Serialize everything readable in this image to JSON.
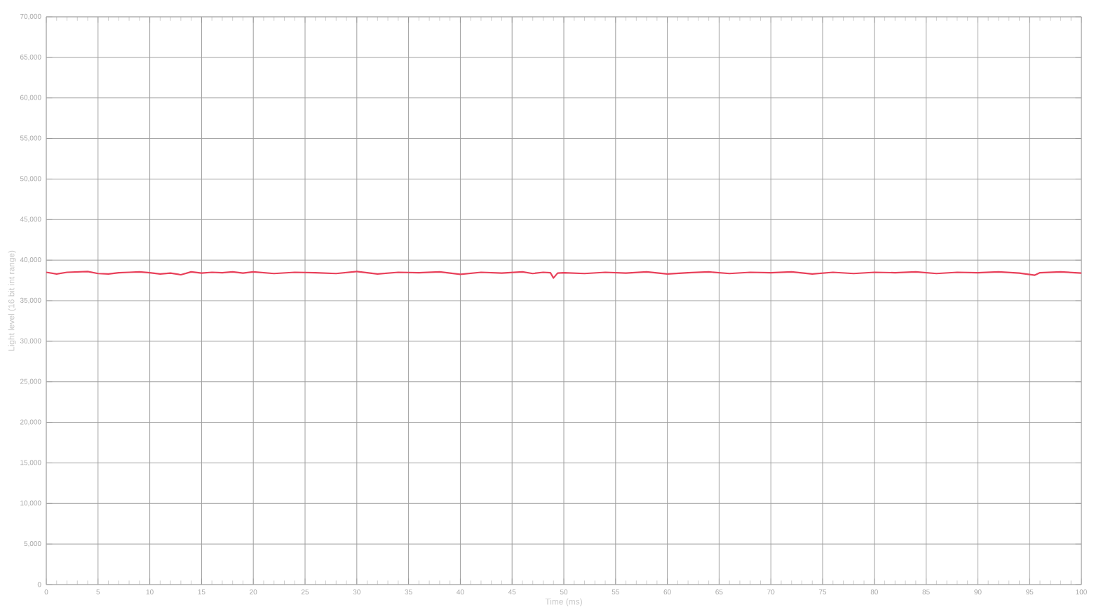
{
  "chart_data": {
    "type": "line",
    "xlabel": "Time (ms)",
    "ylabel": "Light level (16 bit int range)",
    "x": [
      0,
      1,
      2,
      3,
      4,
      5,
      6,
      7,
      8,
      9,
      10,
      11,
      12,
      13,
      14,
      15,
      16,
      17,
      18,
      19,
      20,
      22,
      24,
      26,
      28,
      30,
      32,
      34,
      36,
      38,
      40,
      42,
      44,
      46,
      47,
      48,
      48.7,
      49,
      49.4,
      50,
      52,
      54,
      56,
      58,
      60,
      62,
      64,
      66,
      68,
      70,
      72,
      74,
      76,
      78,
      80,
      82,
      84,
      86,
      88,
      90,
      92,
      94,
      95.5,
      96,
      98,
      100
    ],
    "series": [
      {
        "color": "#e8405a",
        "values": [
          38500,
          38300,
          38500,
          38550,
          38600,
          38350,
          38300,
          38450,
          38500,
          38550,
          38450,
          38300,
          38400,
          38200,
          38550,
          38400,
          38500,
          38450,
          38550,
          38400,
          38550,
          38350,
          38500,
          38450,
          38350,
          38600,
          38300,
          38500,
          38450,
          38550,
          38250,
          38500,
          38400,
          38550,
          38350,
          38500,
          38450,
          37800,
          38400,
          38450,
          38350,
          38500,
          38400,
          38550,
          38300,
          38450,
          38550,
          38350,
          38500,
          38450,
          38550,
          38300,
          38500,
          38350,
          38500,
          38450,
          38550,
          38350,
          38500,
          38450,
          38550,
          38400,
          38150,
          38450,
          38550,
          38400
        ]
      }
    ],
    "xlim": [
      0,
      100
    ],
    "xticks": [
      0,
      5,
      10,
      15,
      20,
      25,
      30,
      35,
      40,
      45,
      50,
      55,
      60,
      65,
      70,
      75,
      80,
      85,
      90,
      95,
      100
    ],
    "ylim": [
      0,
      70000
    ],
    "yticks": [
      {
        "value": 0,
        "label": "0"
      },
      {
        "value": 5000,
        "label": "5,000"
      },
      {
        "value": 10000,
        "label": "10,000"
      },
      {
        "value": 15000,
        "label": "15,000"
      },
      {
        "value": 20000,
        "label": "20,000"
      },
      {
        "value": 25000,
        "label": "25,000"
      },
      {
        "value": 30000,
        "label": "30,000"
      },
      {
        "value": 35000,
        "label": "35,000"
      },
      {
        "value": 40000,
        "label": "40,000"
      },
      {
        "value": 45000,
        "label": "45,000"
      },
      {
        "value": 50000,
        "label": "50,000"
      },
      {
        "value": 55000,
        "label": "55,000"
      },
      {
        "value": 60000,
        "label": "60,000"
      },
      {
        "value": 65000,
        "label": "65,000"
      },
      {
        "value": 70000,
        "label": "70,000"
      }
    ],
    "grid": true,
    "line_style": "solid"
  }
}
